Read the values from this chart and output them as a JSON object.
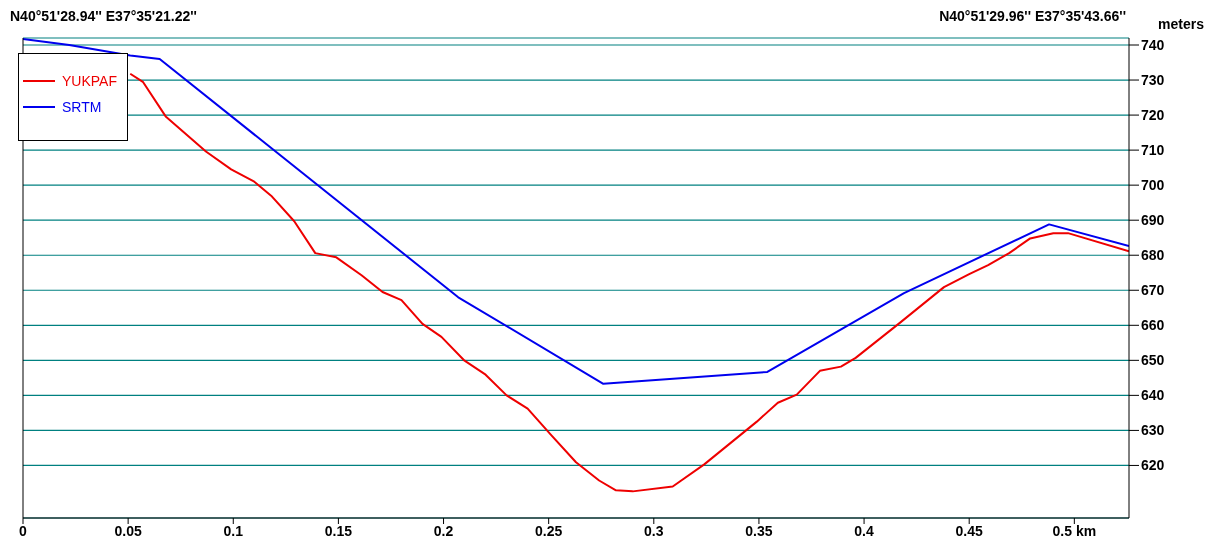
{
  "chart_data": {
    "type": "line",
    "ylabel": "meters",
    "annotations": [
      "N40°51'28.94'' E37°35'21.22''",
      "N40°51'29.96'' E37°35'43.66''"
    ],
    "xlim": [
      0,
      0.526
    ],
    "xticks": [
      0,
      0.05,
      0.1,
      0.15,
      0.2,
      0.25,
      0.3,
      0.35,
      0.4,
      0.45,
      {
        "value": 0.5,
        "label": "0.5 km"
      }
    ],
    "ylim": [
      605,
      742
    ],
    "yticks": [
      620,
      630,
      640,
      650,
      660,
      670,
      680,
      690,
      700,
      710,
      720,
      730,
      740
    ],
    "grid": "y",
    "legend": "top left",
    "marker": "none",
    "line_style": "solid",
    "series": [
      {
        "name": "YUKPAF",
        "color": "#ee0000",
        "x": [
          0.051,
          0.057,
          0.068,
          0.087,
          0.099,
          0.11,
          0.118,
          0.129,
          0.139,
          0.149,
          0.161,
          0.171,
          0.18,
          0.19,
          0.199,
          0.21,
          0.22,
          0.23,
          0.24,
          0.251,
          0.263,
          0.274,
          0.282,
          0.29,
          0.309,
          0.324,
          0.349,
          0.359,
          0.368,
          0.379,
          0.389,
          0.396,
          0.417,
          0.438,
          0.45,
          0.459,
          0.469,
          0.479,
          0.49,
          0.497,
          0.526
        ],
        "values": [
          731.8,
          729.5,
          719.5,
          709.6,
          704.5,
          701,
          697,
          689.7,
          680.6,
          679.4,
          674.3,
          669.5,
          667.2,
          660.4,
          656.7,
          649.9,
          645.9,
          640,
          636.2,
          628.8,
          620.9,
          615.7,
          612.9,
          612.6,
          614,
          620.3,
          632.5,
          637.9,
          640.2,
          647,
          648.2,
          650.7,
          660.7,
          670.9,
          674.6,
          677.2,
          680.6,
          684.8,
          686.3,
          686.3,
          681.1
        ]
      },
      {
        "name": "SRTM",
        "color": "#0000ee",
        "x": [
          0,
          0.022,
          0.051,
          0.065,
          0.207,
          0.276,
          0.354,
          0.419,
          0.488,
          0.526
        ],
        "values": [
          741.7,
          740,
          737,
          736,
          668,
          643.3,
          646.7,
          669.2,
          688.8,
          682.6
        ]
      }
    ]
  }
}
